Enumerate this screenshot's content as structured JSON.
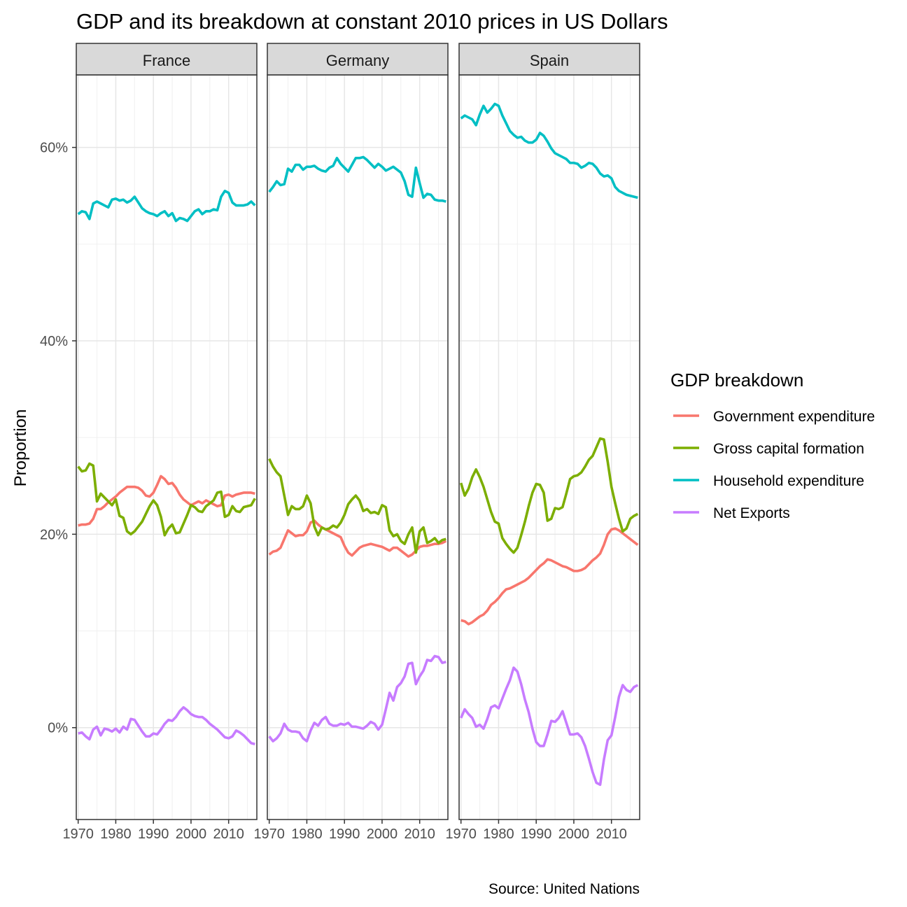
{
  "chart_data": {
    "type": "line",
    "title": "GDP and its breakdown at constant 2010 prices in US Dollars",
    "ylabel": "Proportion",
    "xlabel": "",
    "caption": "Source: United Nations",
    "legend_title": "GDP breakdown",
    "legend_position": "right",
    "grid": true,
    "xlim": [
      1969.5,
      2017.5
    ],
    "ylim": [
      -9.5,
      67.5
    ],
    "x_ticks": [
      1970,
      1980,
      1990,
      2000,
      2010
    ],
    "x_tick_labels": [
      "1970",
      "1980",
      "1990",
      "2000",
      "2010"
    ],
    "y_ticks": [
      0,
      20,
      40,
      60
    ],
    "y_tick_labels": [
      "0%",
      "20%",
      "40%",
      "60%"
    ],
    "x": [
      1970,
      1971,
      1972,
      1973,
      1974,
      1975,
      1976,
      1977,
      1978,
      1979,
      1980,
      1981,
      1982,
      1983,
      1984,
      1985,
      1986,
      1987,
      1988,
      1989,
      1990,
      1991,
      1992,
      1993,
      1994,
      1995,
      1996,
      1997,
      1998,
      1999,
      2000,
      2001,
      2002,
      2003,
      2004,
      2005,
      2006,
      2007,
      2008,
      2009,
      2010,
      2011,
      2012,
      2013,
      2014,
      2015,
      2016,
      2017
    ],
    "series_styles": [
      {
        "name": "Government expenditure",
        "color": "#F8766D"
      },
      {
        "name": "Gross capital formation",
        "color": "#7CAE00"
      },
      {
        "name": "Household expenditure",
        "color": "#00BFC4"
      },
      {
        "name": "Net Exports",
        "color": "#C77CFF"
      }
    ],
    "panels": [
      {
        "name": "France",
        "series": [
          {
            "name": "Government expenditure",
            "values": [
              20.9,
              21.0,
              21.0,
              21.1,
              21.6,
              22.6,
              22.6,
              22.9,
              23.3,
              23.6,
              23.9,
              24.3,
              24.6,
              24.9,
              24.9,
              24.9,
              24.8,
              24.5,
              24.0,
              23.9,
              24.3,
              25.1,
              26.0,
              25.7,
              25.2,
              25.3,
              24.8,
              24.1,
              23.6,
              23.3,
              23.0,
              23.2,
              23.4,
              23.2,
              23.5,
              23.3,
              23.1,
              22.9,
              23.0,
              24.0,
              24.1,
              23.9,
              24.1,
              24.2,
              24.3,
              24.3,
              24.3,
              24.2
            ]
          },
          {
            "name": "Gross capital formation",
            "values": [
              27.0,
              26.5,
              26.6,
              27.3,
              27.1,
              23.4,
              24.2,
              23.8,
              23.4,
              23.0,
              23.6,
              21.9,
              21.7,
              20.3,
              20.0,
              20.3,
              20.8,
              21.3,
              22.1,
              22.9,
              23.5,
              23.0,
              21.8,
              19.9,
              20.6,
              21.0,
              20.1,
              20.2,
              21.1,
              22.0,
              23.0,
              22.8,
              22.4,
              22.3,
              22.9,
              23.2,
              23.5,
              24.3,
              24.4,
              21.8,
              22.0,
              22.9,
              22.4,
              22.3,
              22.8,
              22.9,
              23.0,
              23.7
            ]
          },
          {
            "name": "Household expenditure",
            "values": [
              53.1,
              53.4,
              53.3,
              52.6,
              54.2,
              54.4,
              54.2,
              54.0,
              53.8,
              54.6,
              54.7,
              54.5,
              54.6,
              54.3,
              54.5,
              54.9,
              54.3,
              53.7,
              53.4,
              53.2,
              53.1,
              52.9,
              53.2,
              53.4,
              52.9,
              53.2,
              52.4,
              52.7,
              52.6,
              52.4,
              52.9,
              53.4,
              53.6,
              53.1,
              53.4,
              53.4,
              53.6,
              53.5,
              54.9,
              55.5,
              55.3,
              54.3,
              54.0,
              54.0,
              54.0,
              54.1,
              54.4,
              54.0
            ]
          },
          {
            "name": "Net Exports",
            "values": [
              -0.6,
              -0.5,
              -0.9,
              -1.2,
              -0.2,
              0.1,
              -0.8,
              -0.1,
              -0.2,
              -0.4,
              -0.1,
              -0.5,
              0.1,
              -0.2,
              0.9,
              0.8,
              0.2,
              -0.4,
              -0.9,
              -0.9,
              -0.6,
              -0.7,
              -0.2,
              0.4,
              0.8,
              0.7,
              1.1,
              1.7,
              2.1,
              1.8,
              1.4,
              1.2,
              1.1,
              1.1,
              0.8,
              0.4,
              0.1,
              -0.2,
              -0.6,
              -1.0,
              -1.1,
              -0.9,
              -0.3,
              -0.5,
              -0.8,
              -1.2,
              -1.6,
              -1.7
            ]
          }
        ]
      },
      {
        "name": "Germany",
        "series": [
          {
            "name": "Government expenditure",
            "values": [
              17.9,
              18.2,
              18.3,
              18.6,
              19.5,
              20.4,
              20.1,
              19.8,
              19.9,
              19.9,
              20.3,
              21.2,
              21.4,
              21.0,
              20.7,
              20.5,
              20.3,
              20.1,
              19.9,
              19.7,
              18.8,
              18.1,
              17.8,
              18.2,
              18.6,
              18.8,
              18.9,
              19.0,
              18.9,
              18.8,
              18.7,
              18.5,
              18.3,
              18.6,
              18.6,
              18.3,
              18.0,
              17.7,
              17.9,
              18.3,
              18.7,
              18.8,
              18.8,
              18.9,
              19.0,
              19.0,
              19.1,
              19.3
            ]
          },
          {
            "name": "Gross capital formation",
            "values": [
              27.8,
              27.0,
              26.4,
              26.0,
              24.0,
              22.0,
              22.9,
              22.6,
              22.6,
              22.9,
              24.0,
              23.2,
              20.8,
              19.9,
              20.7,
              20.5,
              20.6,
              20.9,
              20.7,
              21.2,
              22.0,
              23.1,
              23.6,
              24.0,
              23.5,
              22.4,
              22.6,
              22.2,
              22.3,
              22.1,
              23.0,
              22.8,
              20.4,
              19.8,
              20.0,
              19.3,
              19.0,
              20.0,
              20.7,
              18.1,
              20.3,
              20.7,
              19.1,
              19.3,
              19.6,
              19.1,
              19.4,
              19.5
            ]
          },
          {
            "name": "Household expenditure",
            "values": [
              55.4,
              55.9,
              56.5,
              56.1,
              56.2,
              57.8,
              57.5,
              58.2,
              58.2,
              57.7,
              58.0,
              58.0,
              58.1,
              57.8,
              57.6,
              57.5,
              57.9,
              58.1,
              58.9,
              58.3,
              57.9,
              57.5,
              58.2,
              58.9,
              58.9,
              59.0,
              58.7,
              58.3,
              57.9,
              58.3,
              58.0,
              57.6,
              57.8,
              58.0,
              57.7,
              57.4,
              56.5,
              55.1,
              54.9,
              57.9,
              56.3,
              54.8,
              55.2,
              55.1,
              54.6,
              54.5,
              54.5,
              54.4
            ]
          },
          {
            "name": "Net Exports",
            "values": [
              -0.9,
              -1.4,
              -1.1,
              -0.6,
              0.4,
              -0.2,
              -0.4,
              -0.4,
              -0.5,
              -1.1,
              -1.4,
              -0.3,
              0.5,
              0.2,
              0.8,
              1.1,
              0.4,
              0.2,
              0.2,
              0.4,
              0.3,
              0.5,
              0.1,
              0.1,
              0.0,
              -0.1,
              0.2,
              0.6,
              0.4,
              -0.2,
              0.3,
              1.9,
              3.6,
              2.8,
              4.2,
              4.6,
              5.3,
              6.6,
              6.7,
              4.5,
              5.3,
              5.9,
              7.0,
              6.9,
              7.4,
              7.3,
              6.7,
              6.8
            ]
          }
        ]
      },
      {
        "name": "Spain",
        "series": [
          {
            "name": "Government expenditure",
            "values": [
              11.1,
              11.0,
              10.7,
              10.9,
              11.2,
              11.5,
              11.7,
              12.1,
              12.7,
              13.0,
              13.4,
              13.9,
              14.3,
              14.4,
              14.6,
              14.8,
              15.0,
              15.2,
              15.5,
              15.9,
              16.3,
              16.7,
              17.0,
              17.4,
              17.3,
              17.1,
              16.9,
              16.7,
              16.6,
              16.4,
              16.2,
              16.2,
              16.3,
              16.5,
              16.9,
              17.3,
              17.6,
              18.0,
              18.9,
              20.0,
              20.5,
              20.6,
              20.4,
              20.1,
              19.8,
              19.5,
              19.2,
              18.9
            ]
          },
          {
            "name": "Gross capital formation",
            "values": [
              25.3,
              24.0,
              24.7,
              25.9,
              26.7,
              25.9,
              24.9,
              23.6,
              22.3,
              21.3,
              21.1,
              19.6,
              19.0,
              18.5,
              18.1,
              18.6,
              19.9,
              21.3,
              22.9,
              24.3,
              25.2,
              25.1,
              24.3,
              21.4,
              21.6,
              22.7,
              22.6,
              22.8,
              24.2,
              25.7,
              26.0,
              26.1,
              26.4,
              27.0,
              27.7,
              28.1,
              29.0,
              29.9,
              29.8,
              27.5,
              24.9,
              23.2,
              21.6,
              20.3,
              20.6,
              21.6,
              21.9,
              22.1
            ]
          },
          {
            "name": "Household expenditure",
            "values": [
              63.0,
              63.3,
              63.1,
              62.9,
              62.3,
              63.4,
              64.3,
              63.6,
              64.0,
              64.5,
              64.3,
              63.3,
              62.5,
              61.7,
              61.3,
              61.0,
              61.1,
              60.7,
              60.5,
              60.5,
              60.8,
              61.5,
              61.2,
              60.6,
              59.9,
              59.4,
              59.2,
              59.0,
              58.8,
              58.4,
              58.4,
              58.3,
              57.9,
              58.1,
              58.4,
              58.3,
              57.9,
              57.3,
              57.0,
              57.1,
              56.8,
              55.9,
              55.5,
              55.3,
              55.1,
              55.0,
              54.9,
              54.8
            ]
          },
          {
            "name": "Net Exports",
            "values": [
              1.0,
              1.9,
              1.4,
              1.0,
              0.1,
              0.3,
              -0.1,
              0.9,
              2.1,
              2.3,
              2.0,
              3.0,
              4.0,
              4.9,
              6.2,
              5.8,
              4.5,
              2.9,
              1.6,
              -0.1,
              -1.5,
              -1.9,
              -1.9,
              -0.7,
              0.7,
              0.6,
              1.0,
              1.7,
              0.5,
              -0.7,
              -0.7,
              -0.6,
              -1.0,
              -1.9,
              -3.2,
              -4.6,
              -5.7,
              -5.9,
              -3.3,
              -1.3,
              -0.8,
              1.1,
              3.2,
              4.4,
              3.9,
              3.7,
              4.2,
              4.4
            ]
          }
        ]
      }
    ]
  }
}
